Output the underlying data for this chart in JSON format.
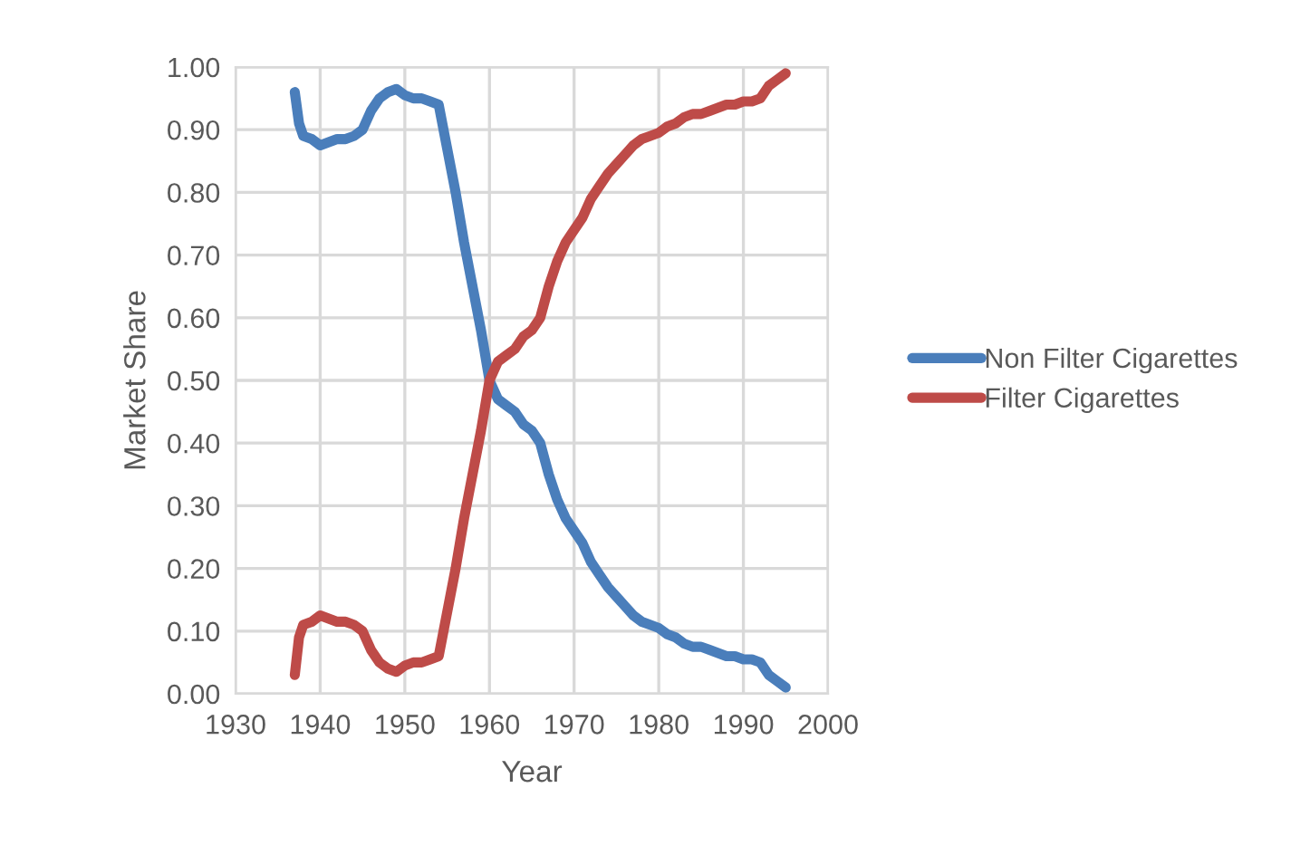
{
  "chart_data": {
    "type": "line",
    "xlabel": "Year",
    "ylabel": "Market Share",
    "x": [
      1937,
      1937.5,
      1938,
      1939,
      1940,
      1941,
      1942,
      1943,
      1944,
      1945,
      1946,
      1947,
      1948,
      1949,
      1950,
      1951,
      1952,
      1953,
      1954,
      1955,
      1956,
      1957,
      1958,
      1959,
      1960,
      1961,
      1962,
      1963,
      1964,
      1965,
      1966,
      1967,
      1968,
      1969,
      1970,
      1971,
      1972,
      1973,
      1974,
      1975,
      1976,
      1977,
      1978,
      1979,
      1980,
      1981,
      1982,
      1983,
      1984,
      1985,
      1986,
      1987,
      1988,
      1989,
      1990,
      1991,
      1992,
      1993,
      1994,
      1995
    ],
    "series": [
      {
        "name": "Non Filter Cigarettes",
        "color": "#4a7ebb",
        "values": [
          0.96,
          0.91,
          0.89,
          0.885,
          0.875,
          0.88,
          0.885,
          0.885,
          0.89,
          0.9,
          0.93,
          0.95,
          0.96,
          0.965,
          0.955,
          0.95,
          0.95,
          0.945,
          0.94,
          0.87,
          0.8,
          0.72,
          0.65,
          0.58,
          0.5,
          0.47,
          0.46,
          0.45,
          0.43,
          0.42,
          0.4,
          0.35,
          0.31,
          0.28,
          0.26,
          0.24,
          0.21,
          0.19,
          0.17,
          0.155,
          0.14,
          0.125,
          0.115,
          0.11,
          0.105,
          0.095,
          0.09,
          0.08,
          0.075,
          0.075,
          0.07,
          0.065,
          0.06,
          0.06,
          0.055,
          0.055,
          0.05,
          0.03,
          0.02,
          0.01
        ]
      },
      {
        "name": "Filter Cigarettes",
        "color": "#be4b48",
        "values": [
          0.03,
          0.09,
          0.11,
          0.115,
          0.125,
          0.12,
          0.115,
          0.115,
          0.11,
          0.1,
          0.07,
          0.05,
          0.04,
          0.035,
          0.045,
          0.05,
          0.05,
          0.055,
          0.06,
          0.13,
          0.2,
          0.28,
          0.35,
          0.42,
          0.5,
          0.53,
          0.54,
          0.55,
          0.57,
          0.58,
          0.6,
          0.65,
          0.69,
          0.72,
          0.74,
          0.76,
          0.79,
          0.81,
          0.83,
          0.845,
          0.86,
          0.875,
          0.885,
          0.89,
          0.895,
          0.905,
          0.91,
          0.92,
          0.925,
          0.925,
          0.93,
          0.935,
          0.94,
          0.94,
          0.945,
          0.945,
          0.95,
          0.97,
          0.98,
          0.99
        ]
      }
    ],
    "xlim": [
      1930,
      2000
    ],
    "xticks": [
      1930,
      1940,
      1950,
      1960,
      1970,
      1980,
      1990,
      2000
    ],
    "ylim": [
      0,
      1
    ],
    "yticks": [
      {
        "value": 0,
        "label": "0.00"
      },
      {
        "value": 0.1,
        "label": "0.10"
      },
      {
        "value": 0.2,
        "label": "0.20"
      },
      {
        "value": 0.3,
        "label": "0.30"
      },
      {
        "value": 0.4,
        "label": "0.40"
      },
      {
        "value": 0.5,
        "label": "0.50"
      },
      {
        "value": 0.6,
        "label": "0.60"
      },
      {
        "value": 0.7,
        "label": "0.70"
      },
      {
        "value": 0.8,
        "label": "0.80"
      },
      {
        "value": 0.9,
        "label": "0.90"
      },
      {
        "value": 1,
        "label": "1.00"
      }
    ],
    "grid": true,
    "legend": "right",
    "line_style": "solid",
    "marker": "none"
  }
}
